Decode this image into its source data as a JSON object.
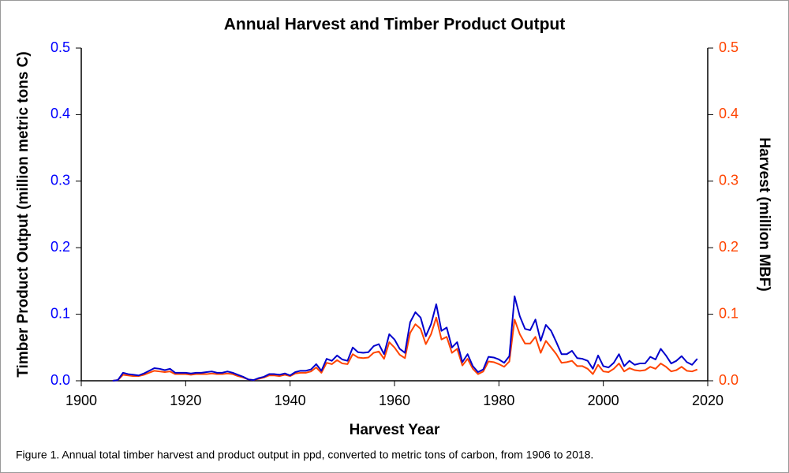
{
  "chart_data": {
    "type": "line",
    "title": "Annual Harvest and Timber Product Output",
    "xlabel": "Harvest Year",
    "ylabel": "Timber Product Output (million metric tons C)",
    "y2label": "Harvest (million MBF)",
    "caption": "Figure 1. Annual total timber harvest and product output in ppd, converted to metric tons of carbon, from 1906 to 2018.",
    "xlim": [
      1900,
      2020
    ],
    "xticks": [
      1900,
      1920,
      1940,
      1960,
      1980,
      2000,
      2020
    ],
    "ylim": [
      0,
      0.5
    ],
    "yticks": [
      {
        "value": 0,
        "label": "0.0"
      },
      0.1,
      0.2,
      0.3,
      0.4,
      0.5
    ],
    "y2lim": [
      0,
      0.5
    ],
    "y2ticks": [
      {
        "value": 0,
        "label": "0.0"
      },
      0.1,
      0.2,
      0.3,
      0.4,
      0.5
    ],
    "yaxis_color": "#0000ff",
    "y2axis_color": "#ff4400",
    "x": [
      1906,
      1907,
      1908,
      1909,
      1910,
      1911,
      1912,
      1913,
      1914,
      1915,
      1916,
      1917,
      1918,
      1919,
      1920,
      1921,
      1922,
      1923,
      1924,
      1925,
      1926,
      1927,
      1928,
      1929,
      1930,
      1931,
      1932,
      1933,
      1934,
      1935,
      1936,
      1937,
      1938,
      1939,
      1940,
      1941,
      1942,
      1943,
      1944,
      1945,
      1946,
      1947,
      1948,
      1949,
      1950,
      1951,
      1952,
      1953,
      1954,
      1955,
      1956,
      1957,
      1958,
      1959,
      1960,
      1961,
      1962,
      1963,
      1964,
      1965,
      1966,
      1967,
      1968,
      1969,
      1970,
      1971,
      1972,
      1973,
      1974,
      1975,
      1976,
      1977,
      1978,
      1979,
      1980,
      1981,
      1982,
      1983,
      1984,
      1985,
      1986,
      1987,
      1988,
      1989,
      1990,
      1991,
      1992,
      1993,
      1994,
      1995,
      1996,
      1997,
      1998,
      1999,
      2000,
      2001,
      2002,
      2003,
      2004,
      2005,
      2006,
      2007,
      2008,
      2009,
      2010,
      2011,
      2012,
      2013,
      2014,
      2015,
      2016,
      2017,
      2018
    ],
    "series": [
      {
        "color": "#0000cc",
        "values": [
          0.0,
          0.001,
          0.012,
          0.01,
          0.009,
          0.008,
          0.011,
          0.015,
          0.019,
          0.018,
          0.016,
          0.018,
          0.012,
          0.012,
          0.012,
          0.011,
          0.012,
          0.012,
          0.013,
          0.014,
          0.012,
          0.012,
          0.014,
          0.012,
          0.009,
          0.006,
          0.002,
          0.001,
          0.004,
          0.006,
          0.01,
          0.01,
          0.009,
          0.011,
          0.008,
          0.013,
          0.015,
          0.015,
          0.017,
          0.025,
          0.015,
          0.033,
          0.03,
          0.038,
          0.032,
          0.03,
          0.05,
          0.043,
          0.042,
          0.043,
          0.052,
          0.055,
          0.04,
          0.07,
          0.062,
          0.048,
          0.042,
          0.088,
          0.103,
          0.095,
          0.067,
          0.085,
          0.115,
          0.075,
          0.08,
          0.05,
          0.058,
          0.028,
          0.04,
          0.022,
          0.013,
          0.017,
          0.036,
          0.035,
          0.032,
          0.027,
          0.037,
          0.127,
          0.097,
          0.078,
          0.076,
          0.092,
          0.06,
          0.084,
          0.075,
          0.058,
          0.04,
          0.04,
          0.045,
          0.034,
          0.033,
          0.03,
          0.018,
          0.038,
          0.022,
          0.02,
          0.027,
          0.04,
          0.022,
          0.03,
          0.024,
          0.026,
          0.026,
          0.036,
          0.032,
          0.048,
          0.038,
          0.026,
          0.03,
          0.037,
          0.028,
          0.024,
          0.033
        ]
      },
      {
        "color": "#ff4400",
        "axis": "y2",
        "values": [
          0.0,
          0.001,
          0.009,
          0.008,
          0.007,
          0.007,
          0.009,
          0.012,
          0.015,
          0.014,
          0.013,
          0.014,
          0.01,
          0.01,
          0.01,
          0.009,
          0.01,
          0.01,
          0.01,
          0.011,
          0.01,
          0.01,
          0.011,
          0.01,
          0.007,
          0.005,
          0.002,
          0.001,
          0.003,
          0.005,
          0.008,
          0.008,
          0.007,
          0.009,
          0.007,
          0.011,
          0.012,
          0.012,
          0.014,
          0.02,
          0.012,
          0.027,
          0.025,
          0.031,
          0.026,
          0.025,
          0.04,
          0.035,
          0.034,
          0.035,
          0.042,
          0.044,
          0.033,
          0.058,
          0.05,
          0.039,
          0.034,
          0.072,
          0.085,
          0.078,
          0.055,
          0.07,
          0.095,
          0.062,
          0.066,
          0.042,
          0.048,
          0.023,
          0.033,
          0.018,
          0.01,
          0.014,
          0.029,
          0.028,
          0.025,
          0.021,
          0.029,
          0.092,
          0.07,
          0.056,
          0.056,
          0.066,
          0.042,
          0.06,
          0.05,
          0.04,
          0.027,
          0.028,
          0.03,
          0.022,
          0.022,
          0.018,
          0.01,
          0.024,
          0.014,
          0.013,
          0.018,
          0.026,
          0.014,
          0.019,
          0.016,
          0.015,
          0.016,
          0.021,
          0.018,
          0.026,
          0.021,
          0.014,
          0.016,
          0.021,
          0.015,
          0.014,
          0.017
        ]
      }
    ]
  }
}
